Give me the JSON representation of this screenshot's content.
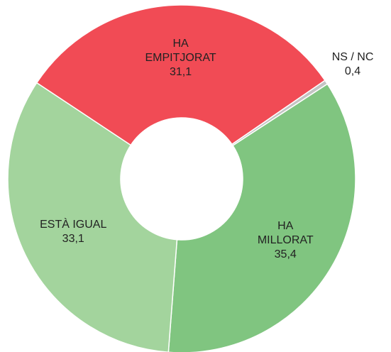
{
  "chart_data": {
    "type": "donut",
    "categories": [
      [
        "NS / NC"
      ],
      [
        "HA",
        "MILLORAT"
      ],
      [
        "ESTÀ IGUAL"
      ],
      [
        "HA",
        "EMPITJORAT"
      ]
    ],
    "values": [
      0.4,
      35.4,
      33.1,
      31.1
    ],
    "value_labels": [
      "0,4",
      "35,4",
      "33,1",
      "31,1"
    ],
    "colors": [
      "#c4c4c4",
      "#80c580",
      "#a3d49d",
      "#f14b55"
    ]
  }
}
